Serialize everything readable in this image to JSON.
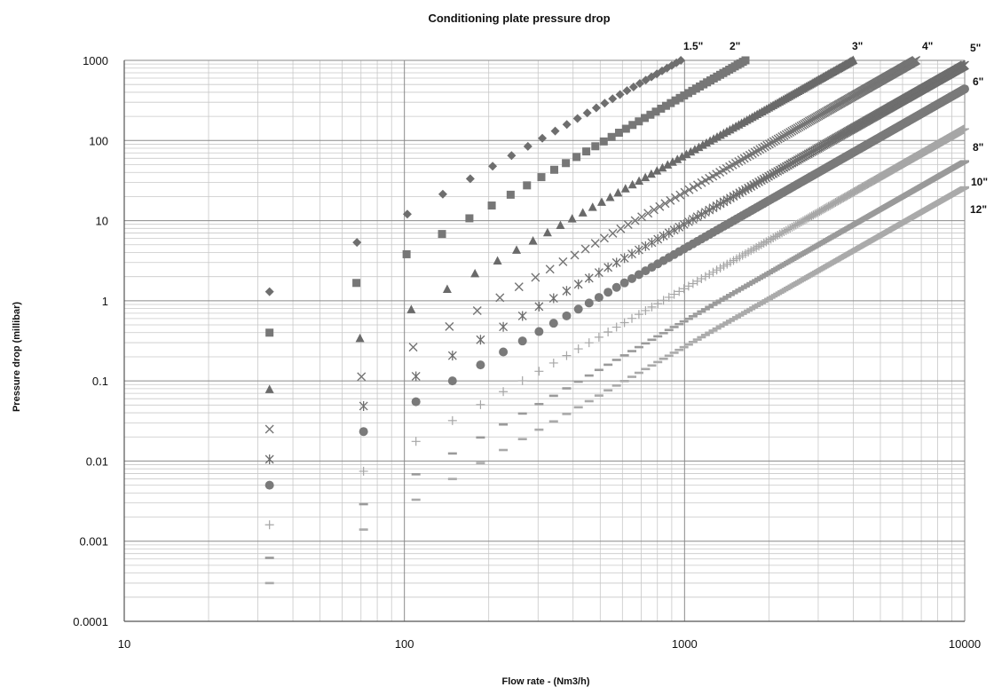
{
  "chart_data": {
    "type": "scatter",
    "title": "Conditioning plate pressure drop",
    "xlabel": "Flow rate - (Nm3/h)",
    "ylabel": "Pressure drop (millibar)",
    "x_scale": "log",
    "y_scale": "log",
    "xlim": [
      10,
      10000
    ],
    "ylim": [
      0.0001,
      1000
    ],
    "x_ticks": [
      10,
      100,
      1000,
      10000
    ],
    "x_tick_labels": [
      "10",
      "100",
      "1000",
      "10000"
    ],
    "y_ticks": [
      0.0001,
      0.001,
      0.01,
      0.1,
      1,
      10,
      100,
      1000
    ],
    "y_tick_labels": [
      "0.0001",
      "0.001",
      "0.01",
      "0.1",
      "1",
      "10",
      "100",
      "1000"
    ],
    "grid": true,
    "legend": "series labels at line ends (right)",
    "series": [
      {
        "name": "1.5\"",
        "marker": "diamond",
        "color": "#6e6e6e",
        "x_range": [
          33,
          970
        ],
        "y_at_x_min": 1.3,
        "y_at_x_max": 1000,
        "exponent": 2,
        "points": 28
      },
      {
        "name": "2\"",
        "marker": "square",
        "color": "#777777",
        "x_range": [
          33,
          1650
        ],
        "y_at_x_min": 0.4,
        "y_at_x_max": 1000,
        "exponent": 2,
        "points": 48
      },
      {
        "name": "3\"",
        "marker": "triangle",
        "color": "#6a6a6a",
        "x_range": [
          33,
          4000
        ],
        "y_at_x_min": 0.078,
        "y_at_x_max": 1000,
        "exponent": 2,
        "points": 110
      },
      {
        "name": "4\"",
        "marker": "x",
        "color": "#747474",
        "x_range": [
          33,
          6700
        ],
        "y_at_x_min": 0.025,
        "y_at_x_max": 1000,
        "exponent": 2,
        "points": 180
      },
      {
        "name": "5\"",
        "marker": "star",
        "color": "#6e6e6e",
        "x_range": [
          33,
          10000
        ],
        "y_at_x_min": 0.0105,
        "y_at_x_max": 870,
        "exponent": 2,
        "points": 260
      },
      {
        "name": "6\"",
        "marker": "circle",
        "color": "#7a7a7a",
        "x_range": [
          33,
          10000
        ],
        "y_at_x_min": 0.005,
        "y_at_x_max": 440,
        "exponent": 2,
        "points": 260
      },
      {
        "name": "8\"",
        "marker": "plus",
        "color": "#a6a6a6",
        "x_range": [
          33,
          10000
        ],
        "y_at_x_min": 0.0016,
        "y_at_x_max": 140,
        "exponent": 2,
        "points": 260
      },
      {
        "name": "10\"",
        "marker": "dash",
        "color": "#9a9a9a",
        "x_range": [
          33,
          10000
        ],
        "y_at_x_min": 0.00062,
        "y_at_x_max": 55,
        "exponent": 2,
        "points": 260
      },
      {
        "name": "12\"",
        "marker": "dash",
        "color": "#aaaaaa",
        "x_range": [
          33,
          10000
        ],
        "y_at_x_min": 0.0003,
        "y_at_x_max": 26,
        "exponent": 2,
        "points": 260
      }
    ]
  }
}
